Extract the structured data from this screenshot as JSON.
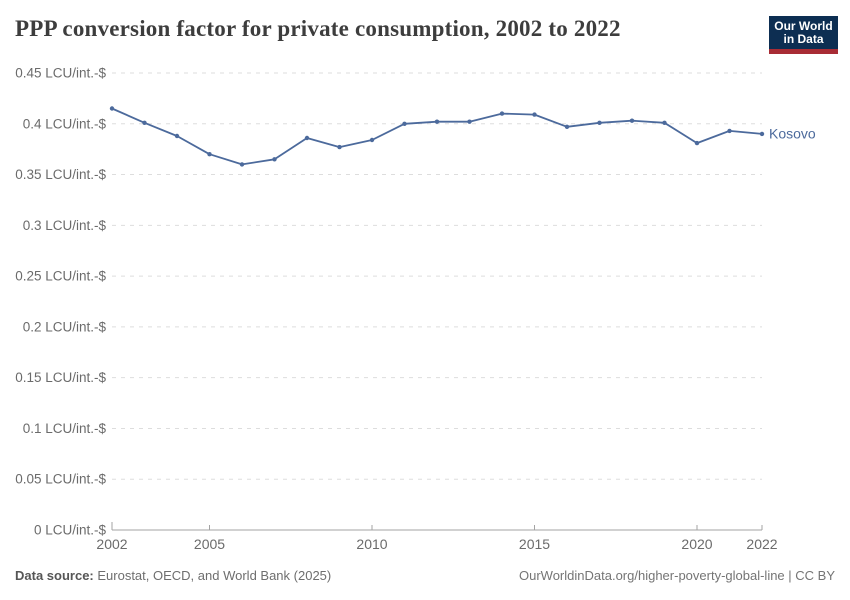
{
  "header": {
    "title": "PPP conversion factor for private consumption, 2002 to 2022",
    "logo": {
      "line1": "Our World",
      "line2": "in Data"
    }
  },
  "footer": {
    "source_label": "Data source:",
    "source_value": " Eurostat, OECD, and World Bank (2025)",
    "license": "OurWorldinData.org/higher-poverty-global-line | CC BY"
  },
  "colors": {
    "line": "#4C6A9C",
    "grid": "#dddddd",
    "axis": "#a3a3a3",
    "tick_label": "#6b6b6b",
    "title": "#3d3d3d",
    "logo_bg": "#0d2e52",
    "logo_accent": "#a82c35"
  },
  "chart_data": {
    "type": "line",
    "title": "PPP conversion factor for private consumption, 2002 to 2022",
    "xlabel": "",
    "ylabel": "LCU/int.-$",
    "y_tick_suffix": " LCU/int.-$",
    "xlim": [
      2002,
      2022
    ],
    "ylim": [
      0,
      0.45
    ],
    "x_ticks": [
      2002,
      2005,
      2010,
      2015,
      2020,
      2022
    ],
    "y_ticks": [
      0,
      0.05,
      0.1,
      0.15,
      0.2,
      0.25,
      0.3,
      0.35,
      0.4,
      0.45
    ],
    "grid": "horizontal-dashed",
    "legend_position": "end-of-line-label",
    "x": [
      2002,
      2003,
      2004,
      2005,
      2006,
      2007,
      2008,
      2009,
      2010,
      2011,
      2012,
      2013,
      2014,
      2015,
      2016,
      2017,
      2018,
      2019,
      2020,
      2021,
      2022
    ],
    "series": [
      {
        "name": "Kosovo",
        "color": "#4C6A9C",
        "values": [
          0.415,
          0.401,
          0.388,
          0.37,
          0.36,
          0.365,
          0.386,
          0.377,
          0.384,
          0.4,
          0.402,
          0.402,
          0.41,
          0.409,
          0.397,
          0.401,
          0.403,
          0.401,
          0.381,
          0.393,
          0.39
        ]
      }
    ]
  }
}
